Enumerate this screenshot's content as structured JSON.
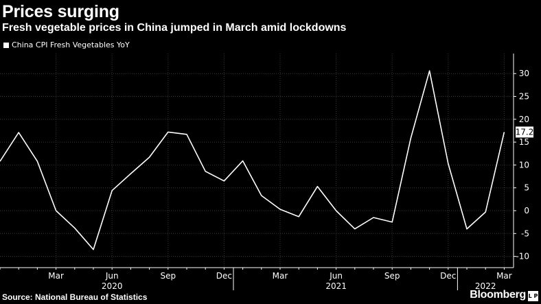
{
  "header": {
    "title": "Prices surging",
    "subtitle": "Fresh vegetable prices in China jumped in March amid lockdowns"
  },
  "footer": {
    "source": "Source: National Bureau of Statistics",
    "brand": "Bloomberg",
    "brand_icon": "bloomberg-terminal-icon",
    "brand_icon_text": "L P"
  },
  "colors": {
    "background": "#000000",
    "line": "#ffffff",
    "grid": "#3a3a3a",
    "text": "#ffffff"
  },
  "chart_data": {
    "type": "line",
    "title": "Prices surging",
    "subtitle": "Fresh vegetable prices in China jumped in March amid lockdowns",
    "legend": "top-left",
    "grid": true,
    "ylim": [
      -12,
      35
    ],
    "yticks": [
      -10,
      -5,
      0,
      5,
      10,
      15,
      20,
      25,
      30
    ],
    "ytick_labels": [
      "-10",
      "-5",
      "0",
      "5",
      "10",
      "15",
      "20",
      "25",
      "30"
    ],
    "x": [
      "2019-12",
      "2020-01",
      "2020-02",
      "2020-03",
      "2020-04",
      "2020-05",
      "2020-06",
      "2020-07",
      "2020-08",
      "2020-09",
      "2020-10",
      "2020-11",
      "2020-12",
      "2021-01",
      "2021-02",
      "2021-03",
      "2021-04",
      "2021-05",
      "2021-06",
      "2021-07",
      "2021-08",
      "2021-09",
      "2021-10",
      "2021-11",
      "2021-12",
      "2022-01",
      "2022-02",
      "2022-03"
    ],
    "month_ticks": [
      {
        "month": "2020-03",
        "label": "Mar"
      },
      {
        "month": "2020-06",
        "label": "Jun"
      },
      {
        "month": "2020-09",
        "label": "Sep"
      },
      {
        "month": "2020-12",
        "label": "Dec"
      },
      {
        "month": "2021-03",
        "label": "Mar"
      },
      {
        "month": "2021-06",
        "label": "Jun"
      },
      {
        "month": "2021-09",
        "label": "Sep"
      },
      {
        "month": "2021-12",
        "label": "Dec"
      },
      {
        "month": "2022-03",
        "label": "Mar"
      }
    ],
    "year_labels": [
      {
        "label": "2020",
        "month": "2020-06"
      },
      {
        "label": "2021",
        "month": "2021-06"
      },
      {
        "label": "2022",
        "month": "2022-02"
      }
    ],
    "year_separators": [
      "2020-12",
      "2021-12"
    ],
    "series": [
      {
        "name": "China CPI Fresh Vegetables YoY",
        "values": [
          10.8,
          17.1,
          10.8,
          0.0,
          -3.8,
          -8.5,
          4.4,
          8.1,
          11.7,
          17.2,
          16.7,
          8.6,
          6.5,
          10.9,
          3.3,
          0.3,
          -1.3,
          5.3,
          0.0,
          -4.0,
          -1.5,
          -2.5,
          15.9,
          30.6,
          10.3,
          -4.0,
          -0.3,
          17.2
        ]
      }
    ],
    "last_value_label": "17.2"
  }
}
